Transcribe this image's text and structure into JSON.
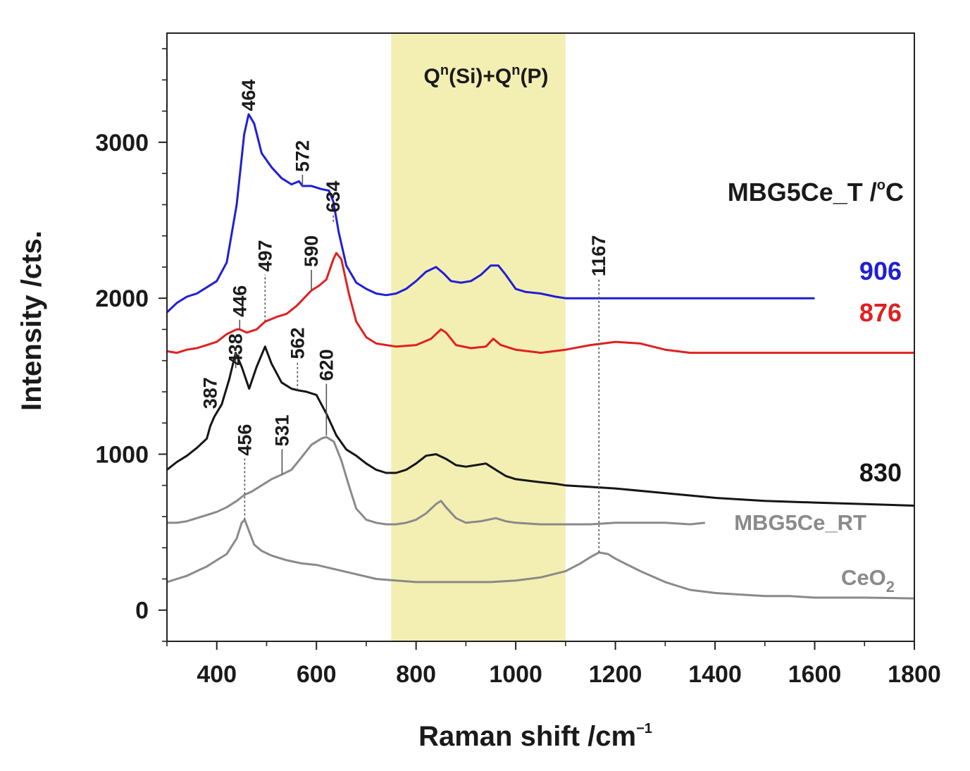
{
  "chart_data": {
    "type": "line",
    "xlabel": "Raman shift /cm",
    "xlabel_sup": "−1",
    "ylabel": "Intensity /cts.",
    "xlim": [
      300,
      1800
    ],
    "ylim": [
      -200,
      3700
    ],
    "x_ticks": [
      400,
      600,
      800,
      1000,
      1200,
      1400,
      1600,
      1800
    ],
    "y_ticks": [
      0,
      1000,
      2000,
      3000
    ],
    "grid": false,
    "legend_title": {
      "text": "MBG5Ce_T /",
      "sup": "o",
      "after": "C"
    },
    "shaded_region": {
      "x_range": [
        750,
        1100
      ],
      "color": "#f3efb3",
      "label": {
        "q1": "Q",
        "sup1": "n",
        "mid": "(Si)+Q",
        "sup2": "n",
        "end": "(P)"
      }
    },
    "series": [
      {
        "name": "906",
        "label_text": "906",
        "color": "#1f1fd6",
        "points": [
          [
            300,
            1910
          ],
          [
            320,
            1970
          ],
          [
            340,
            2010
          ],
          [
            360,
            2030
          ],
          [
            380,
            2070
          ],
          [
            400,
            2110
          ],
          [
            420,
            2230
          ],
          [
            440,
            2600
          ],
          [
            455,
            3050
          ],
          [
            464,
            3180
          ],
          [
            475,
            3120
          ],
          [
            490,
            2930
          ],
          [
            510,
            2840
          ],
          [
            530,
            2770
          ],
          [
            550,
            2730
          ],
          [
            565,
            2750
          ],
          [
            572,
            2720
          ],
          [
            590,
            2720
          ],
          [
            610,
            2700
          ],
          [
            625,
            2690
          ],
          [
            634,
            2620
          ],
          [
            645,
            2420
          ],
          [
            660,
            2210
          ],
          [
            680,
            2100
          ],
          [
            700,
            2060
          ],
          [
            720,
            2030
          ],
          [
            740,
            2020
          ],
          [
            760,
            2030
          ],
          [
            780,
            2060
          ],
          [
            800,
            2110
          ],
          [
            820,
            2170
          ],
          [
            840,
            2200
          ],
          [
            855,
            2160
          ],
          [
            870,
            2110
          ],
          [
            890,
            2100
          ],
          [
            910,
            2110
          ],
          [
            930,
            2150
          ],
          [
            950,
            2210
          ],
          [
            965,
            2210
          ],
          [
            980,
            2150
          ],
          [
            1000,
            2060
          ],
          [
            1020,
            2040
          ],
          [
            1050,
            2030
          ],
          [
            1080,
            2010
          ],
          [
            1100,
            2000
          ],
          [
            1150,
            2000
          ],
          [
            1200,
            2000
          ],
          [
            1300,
            2000
          ],
          [
            1400,
            2000
          ],
          [
            1500,
            2000
          ],
          [
            1600,
            2000
          ]
        ]
      },
      {
        "name": "876",
        "label_text": "876",
        "color": "#e02020",
        "points": [
          [
            300,
            1660
          ],
          [
            320,
            1650
          ],
          [
            340,
            1670
          ],
          [
            360,
            1680
          ],
          [
            380,
            1700
          ],
          [
            400,
            1720
          ],
          [
            420,
            1770
          ],
          [
            440,
            1800
          ],
          [
            446,
            1800
          ],
          [
            460,
            1780
          ],
          [
            480,
            1800
          ],
          [
            497,
            1850
          ],
          [
            520,
            1880
          ],
          [
            540,
            1900
          ],
          [
            560,
            1950
          ],
          [
            575,
            2000
          ],
          [
            590,
            2050
          ],
          [
            605,
            2080
          ],
          [
            620,
            2120
          ],
          [
            634,
            2250
          ],
          [
            640,
            2290
          ],
          [
            650,
            2250
          ],
          [
            665,
            2030
          ],
          [
            680,
            1850
          ],
          [
            700,
            1750
          ],
          [
            720,
            1710
          ],
          [
            760,
            1690
          ],
          [
            800,
            1700
          ],
          [
            830,
            1740
          ],
          [
            850,
            1800
          ],
          [
            860,
            1780
          ],
          [
            880,
            1700
          ],
          [
            910,
            1680
          ],
          [
            940,
            1690
          ],
          [
            955,
            1740
          ],
          [
            970,
            1700
          ],
          [
            1000,
            1670
          ],
          [
            1050,
            1650
          ],
          [
            1100,
            1670
          ],
          [
            1150,
            1700
          ],
          [
            1200,
            1720
          ],
          [
            1250,
            1710
          ],
          [
            1300,
            1670
          ],
          [
            1350,
            1650
          ],
          [
            1400,
            1650
          ],
          [
            1500,
            1650
          ],
          [
            1600,
            1650
          ],
          [
            1700,
            1650
          ],
          [
            1800,
            1650
          ]
        ]
      },
      {
        "name": "830",
        "label_text": "830",
        "color": "#151515",
        "points": [
          [
            300,
            900
          ],
          [
            320,
            950
          ],
          [
            340,
            990
          ],
          [
            360,
            1040
          ],
          [
            380,
            1100
          ],
          [
            387,
            1180
          ],
          [
            395,
            1240
          ],
          [
            410,
            1320
          ],
          [
            425,
            1480
          ],
          [
            438,
            1650
          ],
          [
            450,
            1560
          ],
          [
            465,
            1420
          ],
          [
            480,
            1560
          ],
          [
            497,
            1690
          ],
          [
            510,
            1580
          ],
          [
            530,
            1460
          ],
          [
            550,
            1420
          ],
          [
            562,
            1410
          ],
          [
            580,
            1400
          ],
          [
            600,
            1380
          ],
          [
            620,
            1260
          ],
          [
            640,
            1120
          ],
          [
            660,
            1030
          ],
          [
            680,
            990
          ],
          [
            700,
            940
          ],
          [
            720,
            900
          ],
          [
            740,
            880
          ],
          [
            760,
            880
          ],
          [
            780,
            900
          ],
          [
            800,
            940
          ],
          [
            820,
            990
          ],
          [
            840,
            1000
          ],
          [
            860,
            970
          ],
          [
            880,
            930
          ],
          [
            900,
            920
          ],
          [
            920,
            930
          ],
          [
            940,
            940
          ],
          [
            960,
            900
          ],
          [
            980,
            860
          ],
          [
            1000,
            840
          ],
          [
            1050,
            820
          ],
          [
            1080,
            810
          ],
          [
            1100,
            800
          ],
          [
            1150,
            790
          ],
          [
            1200,
            780
          ],
          [
            1300,
            750
          ],
          [
            1400,
            720
          ],
          [
            1500,
            700
          ],
          [
            1600,
            690
          ],
          [
            1700,
            680
          ],
          [
            1800,
            670
          ]
        ]
      },
      {
        "name": "MBG5Ce_RT",
        "label_text": "MBG5Ce_RT",
        "color": "#8a8a8a",
        "points": [
          [
            300,
            560
          ],
          [
            320,
            560
          ],
          [
            340,
            570
          ],
          [
            360,
            590
          ],
          [
            380,
            610
          ],
          [
            400,
            630
          ],
          [
            420,
            660
          ],
          [
            440,
            700
          ],
          [
            456,
            740
          ],
          [
            470,
            760
          ],
          [
            490,
            800
          ],
          [
            510,
            840
          ],
          [
            531,
            870
          ],
          [
            550,
            900
          ],
          [
            570,
            980
          ],
          [
            590,
            1060
          ],
          [
            610,
            1100
          ],
          [
            620,
            1110
          ],
          [
            635,
            1080
          ],
          [
            650,
            960
          ],
          [
            665,
            800
          ],
          [
            680,
            650
          ],
          [
            700,
            580
          ],
          [
            720,
            560
          ],
          [
            740,
            550
          ],
          [
            760,
            550
          ],
          [
            780,
            560
          ],
          [
            800,
            580
          ],
          [
            820,
            620
          ],
          [
            840,
            680
          ],
          [
            850,
            700
          ],
          [
            860,
            660
          ],
          [
            880,
            590
          ],
          [
            900,
            560
          ],
          [
            930,
            570
          ],
          [
            960,
            590
          ],
          [
            980,
            570
          ],
          [
            1000,
            560
          ],
          [
            1050,
            550
          ],
          [
            1100,
            550
          ],
          [
            1150,
            550
          ],
          [
            1200,
            560
          ],
          [
            1250,
            560
          ],
          [
            1300,
            560
          ],
          [
            1350,
            550
          ],
          [
            1380,
            560
          ]
        ]
      },
      {
        "name": "CeO2",
        "label_text": "CeO",
        "label_sub": "2",
        "color": "#8a8a8a",
        "points": [
          [
            300,
            180
          ],
          [
            320,
            200
          ],
          [
            340,
            220
          ],
          [
            360,
            250
          ],
          [
            380,
            280
          ],
          [
            400,
            320
          ],
          [
            420,
            360
          ],
          [
            440,
            460
          ],
          [
            450,
            560
          ],
          [
            456,
            580
          ],
          [
            462,
            530
          ],
          [
            475,
            420
          ],
          [
            490,
            380
          ],
          [
            510,
            350
          ],
          [
            540,
            320
          ],
          [
            570,
            300
          ],
          [
            600,
            290
          ],
          [
            640,
            260
          ],
          [
            680,
            230
          ],
          [
            720,
            200
          ],
          [
            760,
            190
          ],
          [
            800,
            180
          ],
          [
            850,
            180
          ],
          [
            900,
            180
          ],
          [
            950,
            180
          ],
          [
            1000,
            190
          ],
          [
            1050,
            210
          ],
          [
            1100,
            250
          ],
          [
            1130,
            300
          ],
          [
            1150,
            340
          ],
          [
            1167,
            370
          ],
          [
            1185,
            360
          ],
          [
            1200,
            330
          ],
          [
            1250,
            250
          ],
          [
            1300,
            180
          ],
          [
            1350,
            130
          ],
          [
            1400,
            110
          ],
          [
            1450,
            100
          ],
          [
            1500,
            90
          ],
          [
            1550,
            90
          ],
          [
            1600,
            80
          ],
          [
            1700,
            80
          ],
          [
            1800,
            75
          ]
        ]
      }
    ],
    "peak_annotations": [
      {
        "label": "464",
        "x": 464,
        "y_tip": 3180,
        "y_text": 3200,
        "leader": "solid"
      },
      {
        "label": "572",
        "x": 572,
        "y_tip": 2720,
        "y_text": 2810,
        "leader": "solid"
      },
      {
        "label": "634",
        "x": 634,
        "y_tip": 2490,
        "y_text": 2550,
        "leader": "dotted"
      },
      {
        "label": "446",
        "x": 446,
        "y_tip": 1800,
        "y_text": 1880,
        "leader": "solid"
      },
      {
        "label": "497",
        "x": 497,
        "y_tip": 1850,
        "y_text": 2170,
        "leader": "dotted"
      },
      {
        "label": "590",
        "x": 590,
        "y_tip": 2050,
        "y_text": 2200,
        "leader": "solid"
      },
      {
        "label": "438",
        "x": 438,
        "y_tip": 1650,
        "y_text": 1570,
        "leader": "solid"
      },
      {
        "label": "562",
        "x": 562,
        "y_tip": 1410,
        "y_text": 1610,
        "leader": "dotted"
      },
      {
        "label": "620",
        "x": 620,
        "y_tip": 1120,
        "y_text": 1470,
        "leader": "solid"
      },
      {
        "label": "387",
        "x": 387,
        "y_tip": 1180,
        "y_text": 1290,
        "leader": "none"
      },
      {
        "label": "531",
        "x": 531,
        "y_tip": 870,
        "y_text": 1050,
        "leader": "solid"
      },
      {
        "label": "456",
        "x": 456,
        "y_tip": 580,
        "y_text": 990,
        "leader": "dotted"
      },
      {
        "label": "1167",
        "x": 1167,
        "y_tip": 370,
        "y_text": 2140,
        "leader": "dotted"
      }
    ]
  }
}
